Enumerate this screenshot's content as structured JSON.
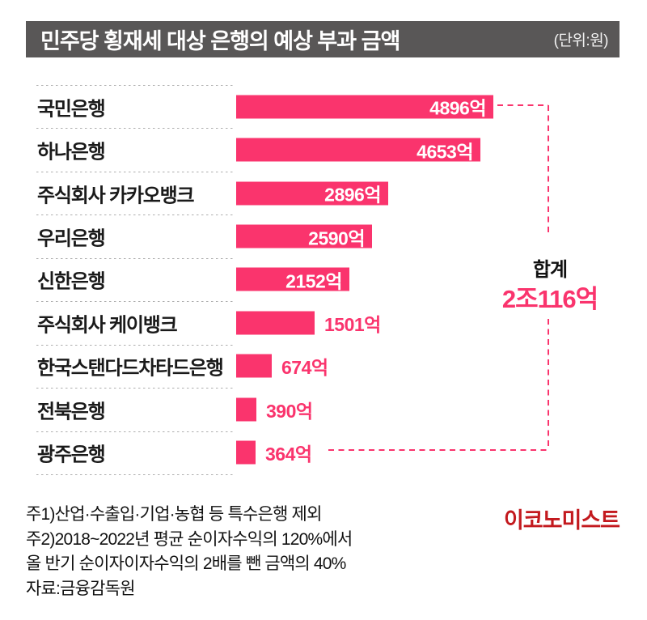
{
  "header": {
    "title": "민주당 횡재세 대상 은행의 예상 부과 금액",
    "unit": "(단위:원)"
  },
  "chart_data": {
    "type": "bar",
    "orientation": "horizontal",
    "title": "민주당 횡재세 대상 은행의 예상 부과 금액",
    "unit": "원",
    "value_unit_suffix": "억",
    "categories": [
      "국민은행",
      "하나은행",
      "주식회사 카카오뱅크",
      "우리은행",
      "신한은행",
      "주식회사 케이뱅크",
      "한국스탠다드차타드은행",
      "전북은행",
      "광주은행"
    ],
    "values": [
      4896,
      4653,
      2896,
      2590,
      2152,
      1501,
      674,
      390,
      364
    ],
    "rows": [
      {
        "label": "국민은행",
        "value": 4896,
        "value_label": "4896억",
        "value_position": "inside"
      },
      {
        "label": "하나은행",
        "value": 4653,
        "value_label": "4653억",
        "value_position": "inside"
      },
      {
        "label": "주식회사 카카오뱅크",
        "value": 2896,
        "value_label": "2896억",
        "value_position": "inside"
      },
      {
        "label": "우리은행",
        "value": 2590,
        "value_label": "2590억",
        "value_position": "inside"
      },
      {
        "label": "신한은행",
        "value": 2152,
        "value_label": "2152억",
        "value_position": "inside"
      },
      {
        "label": "주식회사 케이뱅크",
        "value": 1501,
        "value_label": "1501억",
        "value_position": "outside"
      },
      {
        "label": "한국스탠다드차타드은행",
        "value": 674,
        "value_label": "674억",
        "value_position": "outside"
      },
      {
        "label": "전북은행",
        "value": 390,
        "value_label": "390억",
        "value_position": "outside"
      },
      {
        "label": "광주은행",
        "value": 364,
        "value_label": "364억",
        "value_position": "outside"
      }
    ],
    "total": {
      "label": "합계",
      "value": "2조116억"
    },
    "xlim": [
      0,
      5000
    ],
    "grid": false,
    "legend": false,
    "bar_color": "#FA346D"
  },
  "colors": {
    "bar_pink": "#FA346D",
    "header_bg": "#595757",
    "logo_red": "#C3191E",
    "separator_gray": "#AEAEAE"
  },
  "footnotes": [
    "주1)산업·수출입·기업·농협 등 특수은행 제외",
    "주2)2018~2022년 평균 순이자수익의 120%에서",
    "올 반기 순이자이자수익의 2배를 뺀 금액의 40%",
    "자료:금융감독원"
  ],
  "logo": "이코노미스트"
}
